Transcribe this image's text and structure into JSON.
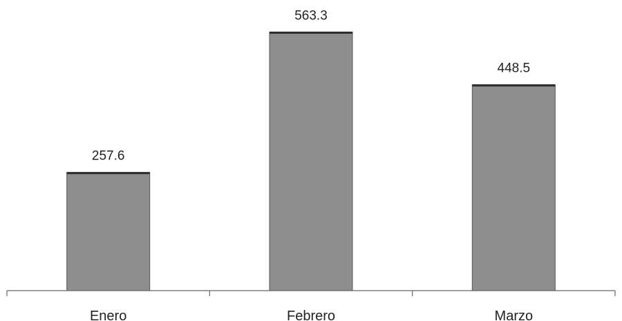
{
  "chart_data": {
    "type": "bar",
    "categories": [
      "Enero",
      "Febrero",
      "Marzo"
    ],
    "values": [
      257.6,
      563.3,
      448.5
    ],
    "data_labels": [
      "257.6",
      "563.3",
      "448.5"
    ],
    "title": "",
    "xlabel": "",
    "ylabel": "",
    "ylim": [
      0,
      600
    ],
    "grid": false,
    "legend": "none",
    "colors": {
      "bar_fill": "#8e8e8e",
      "bar_top": "#2b2b2b",
      "axis": "#666666",
      "text": "#222222"
    }
  }
}
